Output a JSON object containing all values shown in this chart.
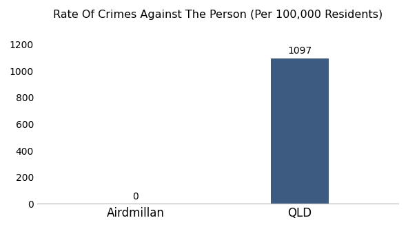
{
  "categories": [
    "Airdmillan",
    "QLD"
  ],
  "values": [
    0,
    1097
  ],
  "bar_color": "#3d5a80",
  "title": "Rate Of Crimes Against The Person (Per 100,000 Residents)",
  "title_fontsize": 11.5,
  "ylim": [
    0,
    1300
  ],
  "yticks": [
    0,
    200,
    400,
    600,
    800,
    1000,
    1200
  ],
  "background_color": "#ffffff",
  "bar_width": 0.35,
  "value_labels": [
    "0",
    "1097"
  ],
  "label_fontsize": 10,
  "tick_fontsize": 10,
  "xlabel_fontsize": 12
}
